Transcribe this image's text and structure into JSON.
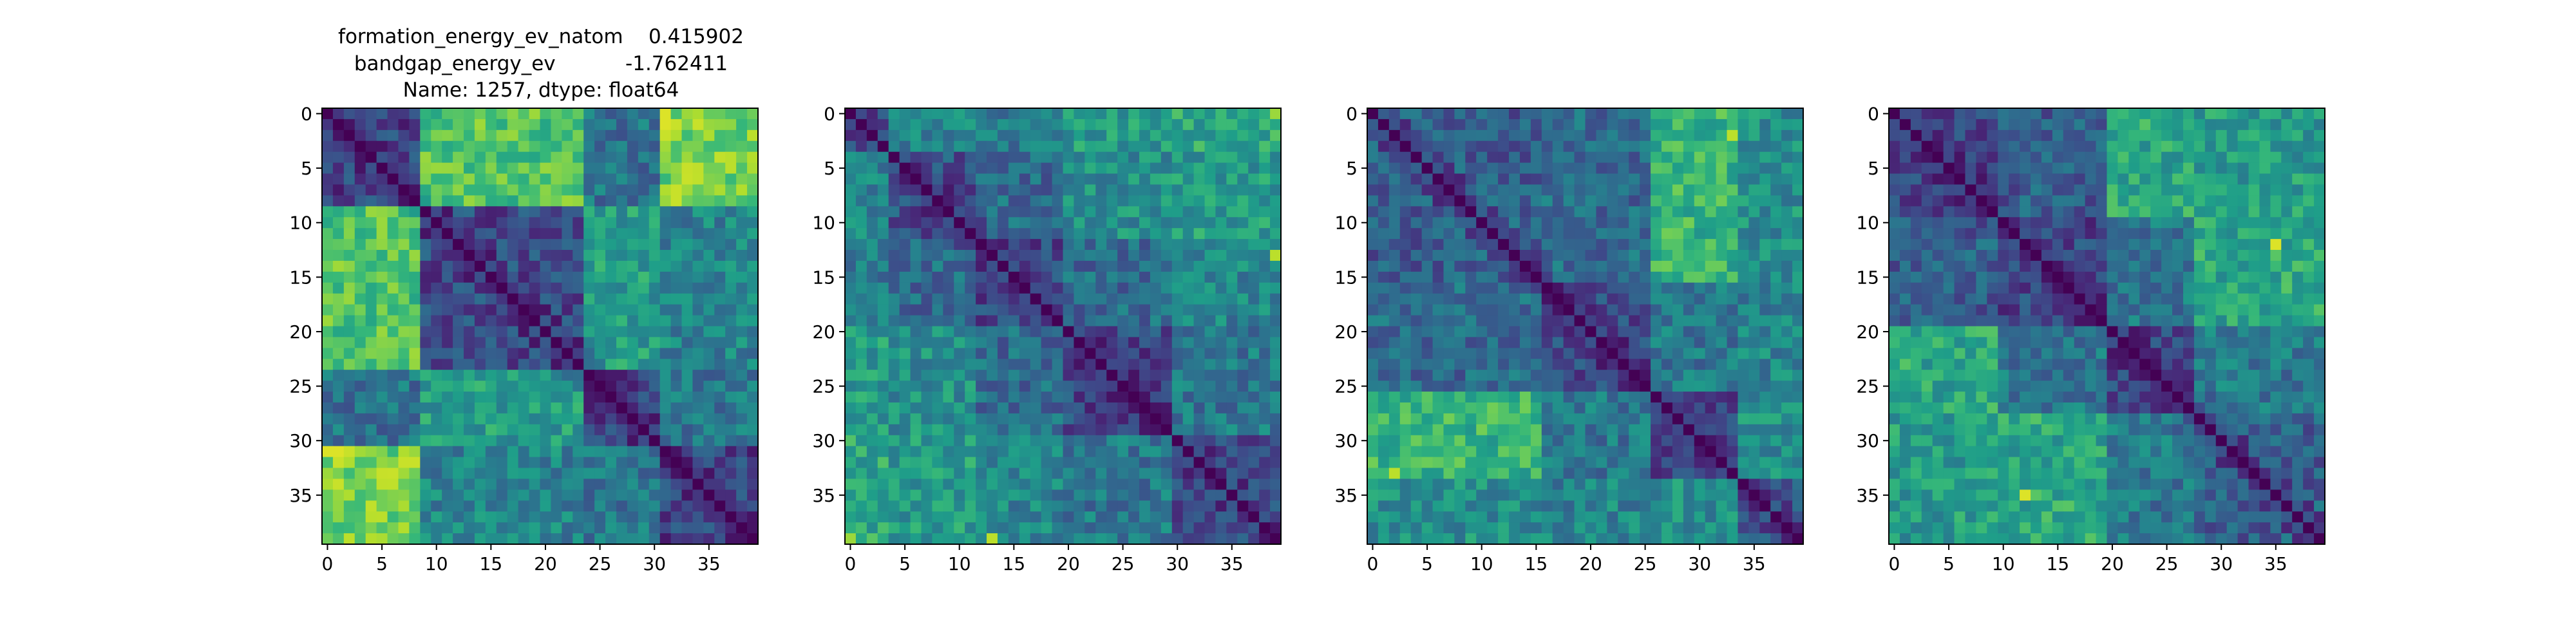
{
  "figure": {
    "title_lines": [
      "formation_energy_ev_natom    0.415902",
      "bandgap_energy_ev           -1.762411",
      "Name: 1257, dtype: float64"
    ]
  },
  "chart_data": [
    {
      "type": "heatmap",
      "title": "",
      "xlabel": "",
      "ylabel": "",
      "size": 40,
      "colormap": "viridis",
      "vmin": 0.0,
      "vmax": 1.0,
      "x_ticks": [
        0,
        5,
        10,
        15,
        20,
        25,
        30,
        35
      ],
      "y_ticks": [
        0,
        5,
        10,
        15,
        20,
        25,
        30,
        35
      ],
      "diagonal": 0.0,
      "block_boundaries": [
        0,
        9,
        24,
        31,
        40
      ],
      "block_levels": [
        [
          0.2,
          0.72,
          0.38,
          0.8
        ],
        [
          0.72,
          0.22,
          0.55,
          0.45
        ],
        [
          0.38,
          0.55,
          0.18,
          0.4
        ],
        [
          0.8,
          0.45,
          0.4,
          0.2
        ]
      ],
      "highlights": [
        {
          "row": 31,
          "col": 0,
          "value": 0.95
        },
        {
          "row": 31,
          "col": 1,
          "value": 0.95
        },
        {
          "row": 0,
          "col": 31,
          "value": 0.95
        },
        {
          "row": 2,
          "col": 39,
          "value": 0.9
        }
      ]
    },
    {
      "type": "heatmap",
      "title": "",
      "xlabel": "",
      "ylabel": "",
      "size": 40,
      "colormap": "viridis",
      "vmin": 0.0,
      "vmax": 1.0,
      "x_ticks": [
        0,
        5,
        10,
        15,
        20,
        25,
        30,
        35
      ],
      "y_ticks": [
        0,
        5,
        10,
        15,
        20,
        25,
        30,
        35
      ],
      "diagonal": 0.0,
      "block_boundaries": [
        0,
        4,
        12,
        20,
        30,
        40
      ],
      "block_levels": [
        [
          0.25,
          0.45,
          0.4,
          0.55,
          0.6
        ],
        [
          0.45,
          0.25,
          0.35,
          0.5,
          0.55
        ],
        [
          0.4,
          0.35,
          0.22,
          0.35,
          0.45
        ],
        [
          0.55,
          0.5,
          0.35,
          0.22,
          0.4
        ],
        [
          0.6,
          0.55,
          0.45,
          0.4,
          0.25
        ]
      ],
      "highlights": [
        {
          "row": 13,
          "col": 39,
          "value": 0.95
        },
        {
          "row": 39,
          "col": 13,
          "value": 0.9
        },
        {
          "row": 0,
          "col": 39,
          "value": 0.85
        }
      ]
    },
    {
      "type": "heatmap",
      "title": "",
      "xlabel": "",
      "ylabel": "",
      "size": 40,
      "colormap": "viridis",
      "vmin": 0.0,
      "vmax": 1.0,
      "x_ticks": [
        0,
        5,
        10,
        15,
        20,
        25,
        30,
        35
      ],
      "y_ticks": [
        0,
        5,
        10,
        15,
        20,
        25,
        30,
        35
      ],
      "diagonal": 0.0,
      "block_boundaries": [
        0,
        16,
        26,
        34,
        40
      ],
      "block_levels": [
        [
          0.3,
          0.35,
          0.65,
          0.5
        ],
        [
          0.35,
          0.22,
          0.4,
          0.45
        ],
        [
          0.65,
          0.4,
          0.22,
          0.5
        ],
        [
          0.5,
          0.45,
          0.5,
          0.25
        ]
      ],
      "highlights": [
        {
          "row": 33,
          "col": 2,
          "value": 0.95
        },
        {
          "row": 2,
          "col": 33,
          "value": 0.9
        }
      ]
    },
    {
      "type": "heatmap",
      "title": "",
      "xlabel": "",
      "ylabel": "",
      "size": 40,
      "colormap": "viridis",
      "vmin": 0.0,
      "vmax": 1.0,
      "x_ticks": [
        0,
        5,
        10,
        15,
        20,
        25,
        30,
        35
      ],
      "y_ticks": [
        0,
        5,
        10,
        15,
        20,
        25,
        30,
        35
      ],
      "diagonal": 0.0,
      "block_boundaries": [
        0,
        10,
        20,
        28,
        40
      ],
      "block_levels": [
        [
          0.22,
          0.3,
          0.6,
          0.55
        ],
        [
          0.3,
          0.22,
          0.4,
          0.6
        ],
        [
          0.6,
          0.4,
          0.22,
          0.4
        ],
        [
          0.55,
          0.6,
          0.4,
          0.3
        ]
      ],
      "highlights": [
        {
          "row": 35,
          "col": 12,
          "value": 0.95
        },
        {
          "row": 12,
          "col": 35,
          "value": 0.95
        }
      ]
    }
  ]
}
